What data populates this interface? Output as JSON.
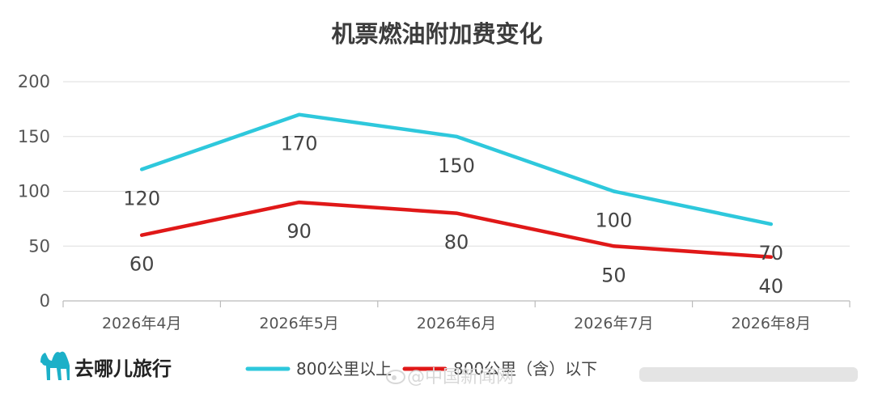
{
  "chart_data": {
    "type": "line",
    "title": "机票燃油附加费变化",
    "categories": [
      "2026年4月",
      "2026年5月",
      "2026年6月",
      "2026年7月",
      "2026年8月"
    ],
    "ylim": [
      0,
      200
    ],
    "yticks": [
      0,
      50,
      100,
      150,
      200
    ],
    "grid": true,
    "legend_position": "bottom",
    "series": [
      {
        "name": "800公里以上",
        "color": "#2ec8dc",
        "values": [
          120,
          170,
          150,
          100,
          70
        ]
      },
      {
        "name": "800公里（含）以下",
        "color": "#e01818",
        "values": [
          60,
          90,
          80,
          50,
          40
        ]
      }
    ]
  },
  "brand": {
    "name": "去哪儿旅行",
    "icon": "camel-icon"
  },
  "watermark": {
    "text": "@中国新闻网",
    "icon": "weibo-icon"
  },
  "colors": {
    "grid": "#dddddd",
    "axis": "#bbbbbb"
  }
}
